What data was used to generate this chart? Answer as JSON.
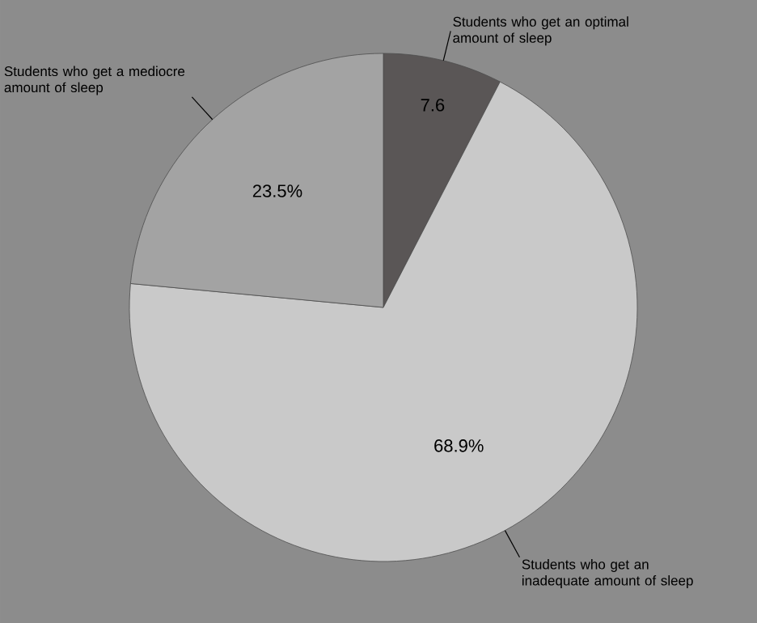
{
  "chart_data": {
    "type": "pie",
    "categories": [
      "Students who get an optimal amount of sleep",
      "Students who get an inadequate amount of sleep",
      "Students who get a mediocre amount of sleep"
    ],
    "values": [
      7.6,
      68.9,
      23.5
    ],
    "colors": [
      "#5a5656",
      "#c9c9c9",
      "#a3a3a3"
    ],
    "value_labels": [
      "7.6",
      "68.9%",
      "23.5%"
    ]
  }
}
